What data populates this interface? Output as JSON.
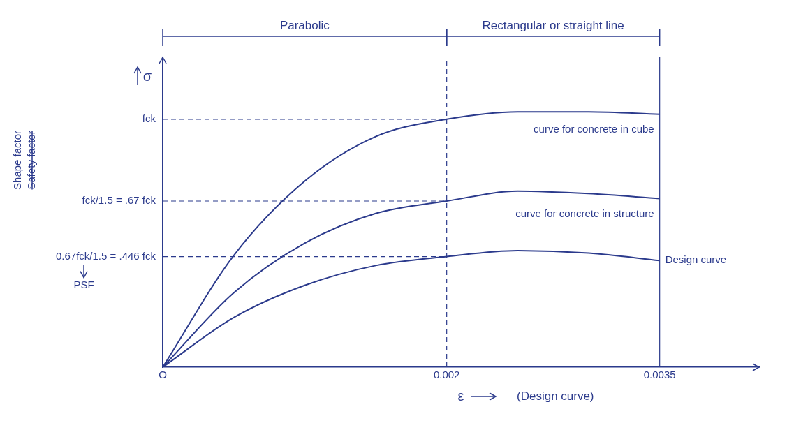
{
  "chart_data": {
    "type": "line",
    "x_label": "ε",
    "y_label": "σ",
    "caption": "(Design curve)",
    "regions": [
      {
        "label": "Parabolic",
        "from": 0,
        "to": 0.002
      },
      {
        "label": "Rectangular or straight line",
        "from": 0.002,
        "to": 0.0035
      }
    ],
    "factor_labels": [
      "Shape factor",
      "Safety factor"
    ],
    "psf_label": "PSF",
    "x": [
      0,
      0.0005,
      0.001,
      0.0015,
      0.002,
      0.0025,
      0.003,
      0.0035
    ],
    "series": [
      {
        "name": "curve for concrete in cube",
        "values": [
          0,
          0.45,
          0.75,
          0.93,
          1.0,
          1.03,
          1.03,
          1.02
        ]
      },
      {
        "name": "curve for concrete in structure",
        "values": [
          0,
          0.3,
          0.5,
          0.62,
          0.67,
          0.71,
          0.7,
          0.68
        ]
      },
      {
        "name": "Design curve",
        "values": [
          0,
          0.2,
          0.33,
          0.41,
          0.446,
          0.47,
          0.46,
          0.43
        ]
      }
    ],
    "color": "#2b3a8c",
    "xlim": [
      0,
      0.0042
    ],
    "ylim": [
      0,
      1.25
    ],
    "xticks": [
      {
        "value": 0,
        "label": "O"
      },
      0.002,
      0.0035
    ],
    "yticks": [
      {
        "value": 0.446,
        "label": "0.67fck/1.5 = .446 fck"
      },
      {
        "value": 0.67,
        "label": "fck/1.5 = .67 fck"
      },
      {
        "value": 1,
        "label": "fck"
      }
    ],
    "grid": false
  }
}
